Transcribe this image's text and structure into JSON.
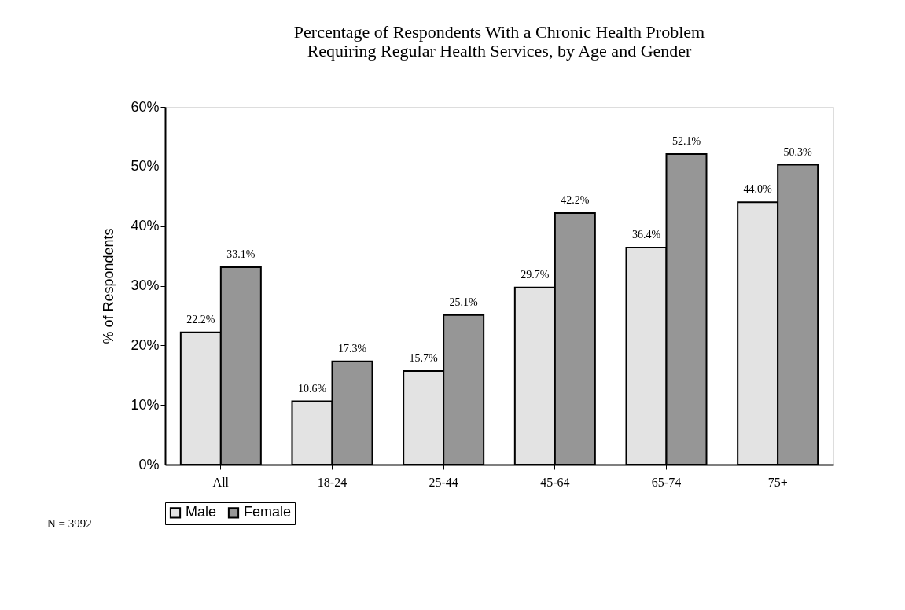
{
  "chart_data": {
    "type": "bar",
    "title": [
      "Percentage of Respondents With a Chronic Health Problem",
      "Requiring Regular Health Services, by Age and Gender"
    ],
    "ylabel": "% of Respondents",
    "categories": [
      "All",
      "18-24",
      "25-44",
      "45-64",
      "65-74",
      "75+"
    ],
    "series": [
      {
        "name": "Male",
        "color": "#e3e3e3",
        "values": [
          22.2,
          10.6,
          15.7,
          29.7,
          36.4,
          44.0
        ],
        "value_labels": [
          "22.2%",
          "10.6%",
          "15.7%",
          "29.7%",
          "36.4%",
          "44.0%"
        ]
      },
      {
        "name": "Female",
        "color": "#969696",
        "values": [
          33.1,
          17.3,
          25.1,
          42.2,
          52.1,
          50.3
        ],
        "value_labels": [
          "33.1%",
          "17.3%",
          "25.1%",
          "42.2%",
          "52.1%",
          "50.3%"
        ]
      }
    ],
    "ylim": [
      0,
      60
    ],
    "yticks": [
      {
        "value": 0,
        "label": "0%"
      },
      {
        "value": 10,
        "label": "10%"
      },
      {
        "value": 20,
        "label": "20%"
      },
      {
        "value": 30,
        "label": "30%"
      },
      {
        "value": 40,
        "label": "40%"
      },
      {
        "value": 50,
        "label": "50%"
      },
      {
        "value": 60,
        "label": "60%"
      }
    ],
    "grid": false,
    "legend": "bottom",
    "annotations": [
      "N = 3992"
    ]
  }
}
